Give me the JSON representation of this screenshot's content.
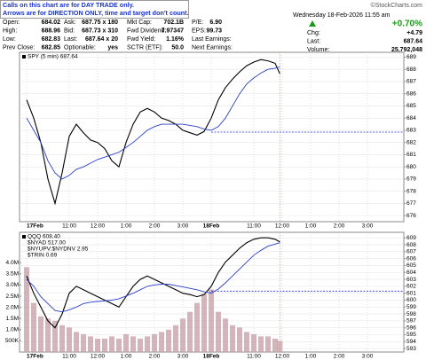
{
  "notice": [
    "Calls on this chart are for DAY TRADE only.",
    "Arrows are for DIRECTION ONLY, time and target don't count."
  ],
  "quote": {
    "source": "©StockCharts.com",
    "timestamp": "Wednesday 18-Feb-2026 11:55 am",
    "change_pct": "+0.70%",
    "rows": [
      [
        "Open:",
        "684.02",
        "Ask:",
        "687.75 x 180",
        "Mkt Cap:",
        "702.1B",
        "P/E:",
        "6.90"
      ],
      [
        "High:",
        "688.96",
        "Bid:",
        "687.73 x 310",
        "Fwd Dividend:",
        "7.97347",
        "EPS:",
        "99.73"
      ],
      [
        "Low:",
        "682.83",
        "Last:",
        "687.64 x 20",
        "Fwd Yield:",
        "1.16%",
        "Last Earnings:"
      ],
      [
        "Prev Close:",
        "682.85",
        "Optionable:",
        "yes",
        "SCTR (ETF):",
        "50.0",
        "Next Earnings:"
      ]
    ],
    "stats": [
      [
        "Chg:",
        "+4.79"
      ],
      [
        "Last:",
        "687.64"
      ],
      [
        "Volume:",
        "25,792,048"
      ]
    ]
  },
  "chart_data": [
    {
      "type": "line",
      "x": [
        0,
        15,
        30,
        45,
        60,
        75,
        90,
        105,
        120,
        135,
        150,
        165,
        180,
        195,
        210,
        225,
        240,
        255,
        270,
        285,
        300,
        315,
        330,
        345,
        360,
        375,
        390,
        405,
        420,
        435,
        450,
        465,
        480,
        495,
        510,
        525,
        535
      ],
      "series": [
        {
          "name": "SPY (5 min) 687.64",
          "color": "#000000",
          "values": [
            685.5,
            684,
            682,
            679,
            677,
            679.5,
            682.5,
            683.5,
            682.8,
            682.2,
            682,
            681.5,
            680.5,
            680,
            682,
            683.5,
            684.5,
            684.8,
            684.5,
            684,
            683.8,
            683.5,
            683,
            682.8,
            682.6,
            682.9,
            684,
            685.5,
            686.5,
            687.2,
            687.8,
            688.3,
            688.6,
            688.8,
            688.7,
            688.5,
            687.64
          ]
        },
        {
          "color": "#2a3fc8",
          "values": [
            684,
            683,
            682,
            680.5,
            679.5,
            679,
            679.3,
            679.8,
            680,
            680.3,
            680.6,
            680.8,
            681,
            681.2,
            681.6,
            682,
            682.5,
            683,
            683.3,
            683.5,
            683.5,
            683.5,
            683.5,
            683.4,
            683.3,
            683.1,
            683,
            683.3,
            684,
            685,
            686,
            686.8,
            687.3,
            687.7,
            688,
            688.1,
            688.2
          ]
        }
      ],
      "xlim": [
        0,
        780
      ],
      "xticks": [
        {
          "value": 0,
          "label": "17Feb"
        },
        {
          "value": 90,
          "label": "11:00"
        },
        {
          "value": 150,
          "label": "12:00"
        },
        {
          "value": 210,
          "label": "1:00"
        },
        {
          "value": 270,
          "label": "2:00"
        },
        {
          "value": 330,
          "label": "3:00"
        },
        {
          "value": 390,
          "label": "18Feb"
        },
        {
          "value": 480,
          "label": "11:00"
        },
        {
          "value": 540,
          "label": "12:00"
        },
        {
          "value": 600,
          "label": "1:00"
        },
        {
          "value": 660,
          "label": "2:00"
        },
        {
          "value": 720,
          "label": "3:00"
        }
      ],
      "ylim": [
        675.5,
        689.4
      ],
      "yticks": [
        689,
        688,
        687,
        686,
        685,
        684,
        683,
        682,
        681,
        680,
        679,
        678,
        677,
        676
      ],
      "grid": true,
      "hline": {
        "value": 682.85,
        "color": "#2233dd"
      },
      "vline": {
        "value": 535,
        "color": "#f0b400"
      }
    },
    {
      "type": "line",
      "x": [
        0,
        15,
        30,
        45,
        60,
        75,
        90,
        105,
        120,
        135,
        150,
        165,
        180,
        195,
        210,
        225,
        240,
        255,
        270,
        285,
        300,
        315,
        330,
        345,
        360,
        375,
        390,
        405,
        420,
        435,
        450,
        465,
        480,
        495,
        510,
        525,
        535
      ],
      "series": [
        {
          "name": "QQQ 608.40",
          "color": "#000000",
          "values": [
            603.5,
            601,
            599,
            597,
            596,
            598,
            601,
            602,
            601.5,
            601,
            600.5,
            600,
            599.5,
            599,
            600.5,
            602,
            603,
            603.5,
            603,
            602.5,
            602,
            601.5,
            601,
            600.8,
            600.5,
            600.8,
            602,
            604,
            605.5,
            606.5,
            607.5,
            608.3,
            608.8,
            609,
            609,
            608.8,
            608.4
          ]
        },
        {
          "color": "#2a3fc8",
          "values": [
            603,
            602,
            600.5,
            599.5,
            598.5,
            598.3,
            598.6,
            599,
            599.5,
            599.7,
            599.8,
            599.9,
            600,
            600.2,
            600.6,
            601,
            601.5,
            602,
            602.2,
            602.3,
            602.3,
            602.1,
            601.9,
            601.7,
            601.5,
            601.2,
            601,
            601.6,
            602.5,
            603.5,
            604.5,
            605.5,
            606.5,
            607.2,
            607.8,
            608.1,
            608.3
          ]
        },
        {
          "type": "bar",
          "axis": "y2",
          "color": "#c9a3aa",
          "values": [
            3800000,
            2200000,
            1600000,
            1500000,
            1400000,
            1200000,
            1100000,
            900000,
            800000,
            700000,
            600000,
            600000,
            700000,
            600000,
            800000,
            700000,
            600000,
            700000,
            800000,
            900000,
            1000000,
            1200000,
            1500000,
            1800000,
            2200000,
            2600000,
            2800000,
            1800000,
            1500000,
            1200000,
            1100000,
            900000,
            800000,
            700000,
            700000,
            600000,
            500000
          ]
        }
      ],
      "annotations": [
        "$NYAD 517.00",
        "$NYUPV:$NYDNV 2.95",
        "$TRIN 0.69"
      ],
      "xlim": [
        0,
        780
      ],
      "xticks": [
        {
          "value": 0,
          "label": "17Feb"
        },
        {
          "value": 90,
          "label": "11:00"
        },
        {
          "value": 150,
          "label": "12:00"
        },
        {
          "value": 210,
          "label": "1:00"
        },
        {
          "value": 270,
          "label": "2:00"
        },
        {
          "value": 330,
          "label": "3:00"
        },
        {
          "value": 390,
          "label": "18Feb"
        },
        {
          "value": 480,
          "label": "11:00"
        },
        {
          "value": 540,
          "label": "12:00"
        },
        {
          "value": 600,
          "label": "1:00"
        },
        {
          "value": 660,
          "label": "2:00"
        },
        {
          "value": 720,
          "label": "3:00"
        }
      ],
      "ylim": [
        592.5,
        609.8
      ],
      "yticks": [
        609,
        608,
        607,
        606,
        605,
        604,
        603,
        602,
        601,
        600,
        599,
        598,
        597,
        596,
        595,
        594,
        593
      ],
      "y2lim": [
        0,
        5360000
      ],
      "y2ticks": [
        {
          "value": 500000,
          "label": "500K"
        },
        {
          "value": 1000000,
          "label": "1.0M"
        },
        {
          "value": 1500000,
          "label": "1.5M"
        },
        {
          "value": 2000000,
          "label": "2.0M"
        },
        {
          "value": 2500000,
          "label": "2.5M"
        },
        {
          "value": 3000000,
          "label": "3.0M"
        },
        {
          "value": 3500000,
          "label": "3.5M"
        },
        {
          "value": 4000000,
          "label": "4.0M"
        }
      ],
      "y2_side": "left",
      "grid": true,
      "hline": {
        "value": 601.3,
        "color": "#2233dd"
      },
      "vline": {
        "value": 535,
        "color": "#f0b400"
      }
    }
  ]
}
